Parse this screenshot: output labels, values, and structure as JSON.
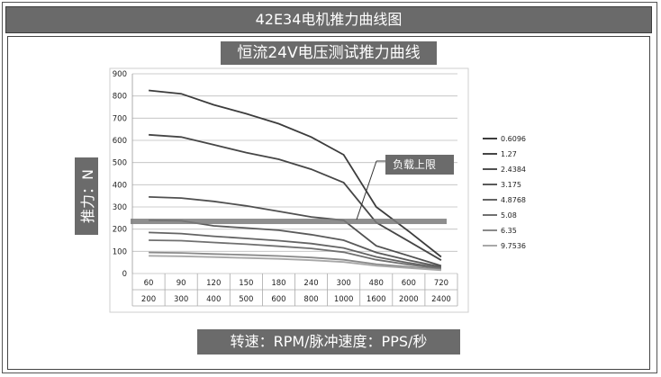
{
  "header": {
    "title": "42E34电机推力曲线图"
  },
  "chart_data": {
    "type": "line",
    "title": "恒流24V电压测试推力曲线",
    "ylabel": "推力：N",
    "xlabel": "转速：RPM/脉冲速度：PPS/秒",
    "ylim": [
      0,
      900
    ],
    "yticks": [
      "0",
      "100",
      "200",
      "300",
      "400",
      "500",
      "600",
      "700",
      "800",
      "900"
    ],
    "categories": [
      "60",
      "90",
      "120",
      "150",
      "180",
      "240",
      "300",
      "480",
      "600",
      "720"
    ],
    "categories_secondary": [
      "200",
      "300",
      "400",
      "500",
      "600",
      "800",
      "1000",
      "1600",
      "2000",
      "2400"
    ],
    "grid": true,
    "legend_position": "right",
    "series": [
      {
        "name": "0.6096",
        "color": "#3c3c3c",
        "values": [
          825,
          810,
          760,
          720,
          675,
          615,
          535,
          300,
          190,
          75
        ]
      },
      {
        "name": "1.27",
        "color": "#464646",
        "values": [
          625,
          615,
          580,
          545,
          515,
          470,
          410,
          230,
          145,
          60
        ]
      },
      {
        "name": "2.4384",
        "color": "#505050",
        "values": [
          345,
          340,
          325,
          305,
          280,
          255,
          240,
          125,
          80,
          35
        ]
      },
      {
        "name": "3.175",
        "color": "#5a5a5a",
        "values": [
          240,
          238,
          215,
          205,
          195,
          175,
          150,
          95,
          60,
          30
        ]
      },
      {
        "name": "4.8768",
        "color": "#646464",
        "values": [
          185,
          180,
          168,
          158,
          148,
          135,
          115,
          75,
          48,
          25
        ]
      },
      {
        "name": "5.08",
        "color": "#707070",
        "values": [
          150,
          148,
          140,
          132,
          123,
          113,
          96,
          62,
          40,
          22
        ]
      },
      {
        "name": "6.35",
        "color": "#8a8a8a",
        "values": [
          95,
          93,
          88,
          84,
          79,
          72,
          62,
          42,
          30,
          18
        ]
      },
      {
        "name": "9.7536",
        "color": "#a8a8a8",
        "values": [
          80,
          78,
          74,
          70,
          66,
          60,
          52,
          35,
          25,
          15
        ]
      }
    ],
    "limit_line": {
      "value": 235,
      "label": "负载上限"
    }
  }
}
